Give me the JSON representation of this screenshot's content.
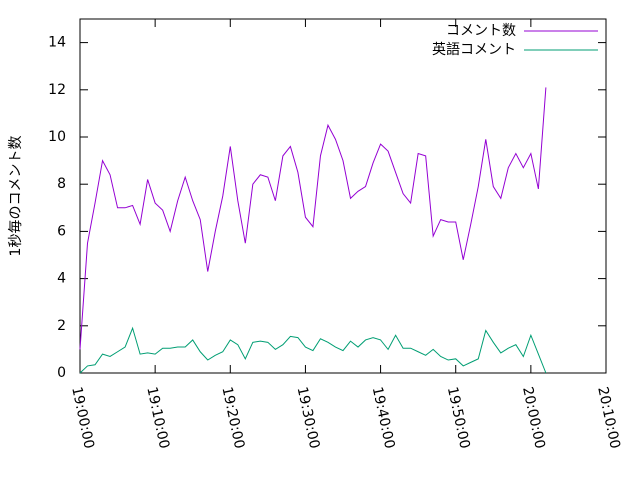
{
  "chart_data": {
    "type": "line",
    "ylabel": "1秒毎のコメント数",
    "x": [
      "19:00:00",
      "19:01:00",
      "19:02:00",
      "19:03:00",
      "19:04:00",
      "19:05:00",
      "19:06:00",
      "19:07:00",
      "19:08:00",
      "19:09:00",
      "19:10:00",
      "19:11:00",
      "19:12:00",
      "19:13:00",
      "19:14:00",
      "19:15:00",
      "19:16:00",
      "19:17:00",
      "19:18:00",
      "19:19:00",
      "19:20:00",
      "19:21:00",
      "19:22:00",
      "19:23:00",
      "19:24:00",
      "19:25:00",
      "19:26:00",
      "19:27:00",
      "19:28:00",
      "19:29:00",
      "19:30:00",
      "19:31:00",
      "19:32:00",
      "19:33:00",
      "19:34:00",
      "19:35:00",
      "19:36:00",
      "19:37:00",
      "19:38:00",
      "19:39:00",
      "19:40:00",
      "19:41:00",
      "19:42:00",
      "19:43:00",
      "19:44:00",
      "19:45:00",
      "19:46:00",
      "19:47:00",
      "19:48:00",
      "19:49:00",
      "19:50:00",
      "19:51:00",
      "19:52:00",
      "19:53:00",
      "19:54:00",
      "19:55:00",
      "19:56:00",
      "19:57:00",
      "19:58:00",
      "19:59:00",
      "20:00:00",
      "20:01:00",
      "20:02:00"
    ],
    "series": [
      {
        "name": "コメント数",
        "color": "#9400d3",
        "values": [
          1.0,
          5.5,
          7.2,
          9.0,
          8.4,
          7.0,
          7.0,
          7.1,
          6.3,
          8.2,
          7.2,
          6.9,
          6.0,
          7.3,
          8.3,
          7.3,
          6.5,
          4.3,
          6.0,
          7.5,
          9.6,
          7.3,
          5.5,
          8.0,
          8.4,
          8.3,
          7.3,
          9.2,
          9.6,
          8.5,
          6.6,
          6.2,
          9.2,
          10.5,
          9.9,
          9.0,
          7.4,
          7.7,
          7.9,
          8.9,
          9.7,
          9.4,
          8.5,
          7.6,
          7.2,
          9.3,
          9.2,
          5.8,
          6.5,
          6.4,
          6.4,
          4.8,
          6.3,
          7.9,
          9.9,
          7.9,
          7.4,
          8.7,
          9.3,
          8.7,
          9.3,
          7.8,
          12.1
        ]
      },
      {
        "name": "英語コメント",
        "color": "#009e73",
        "values": [
          0.0,
          0.3,
          0.35,
          0.8,
          0.7,
          0.9,
          1.1,
          1.9,
          0.8,
          0.85,
          0.8,
          1.05,
          1.05,
          1.1,
          1.1,
          1.4,
          0.9,
          0.55,
          0.75,
          0.9,
          1.4,
          1.2,
          0.6,
          1.3,
          1.35,
          1.3,
          1.0,
          1.2,
          1.55,
          1.5,
          1.1,
          0.95,
          1.45,
          1.3,
          1.1,
          0.95,
          1.35,
          1.1,
          1.4,
          1.5,
          1.4,
          1.0,
          1.6,
          1.05,
          1.05,
          0.9,
          0.75,
          1.0,
          0.7,
          0.55,
          0.6,
          0.3,
          0.45,
          0.6,
          1.8,
          1.3,
          0.85,
          1.05,
          1.2,
          0.7,
          1.6,
          0.8,
          0.0
        ]
      }
    ],
    "xlim": [
      "19:00:00",
      "20:10:00"
    ],
    "xticks": [
      "19:00:00",
      "19:10:00",
      "19:20:00",
      "19:30:00",
      "19:40:00",
      "19:50:00",
      "20:00:00",
      "20:10:00"
    ],
    "ylim": [
      0,
      15
    ],
    "yticks": [
      0,
      2,
      4,
      6,
      8,
      10,
      12,
      14
    ],
    "legend": "top right"
  }
}
